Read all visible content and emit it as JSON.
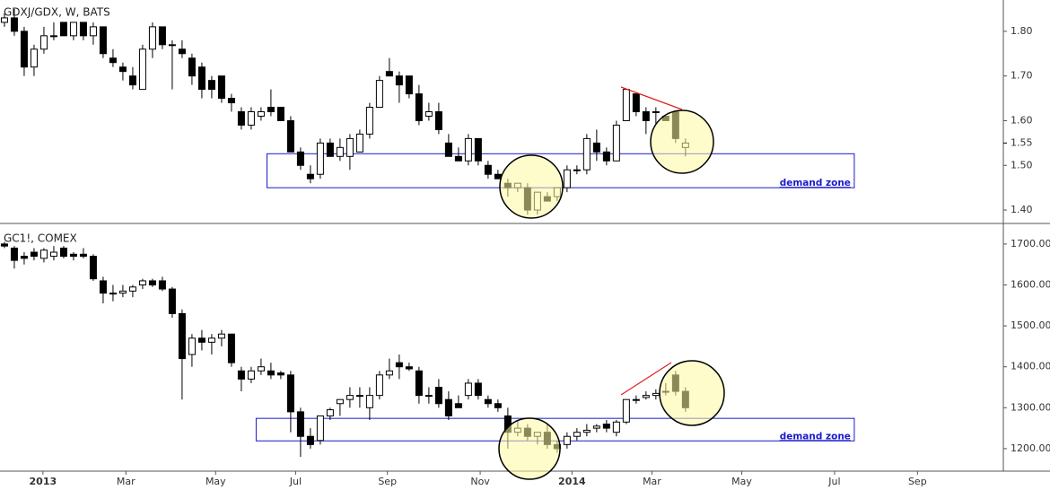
{
  "chart_data": [
    {
      "type": "candlestick",
      "title": "GDXJ/GDX, W, BATS",
      "up_color": "#ffffff",
      "down_color": "#000000",
      "open": [
        1.82,
        1.83,
        1.8,
        1.72,
        1.76,
        1.79,
        1.82,
        1.79,
        1.82,
        1.79,
        1.81,
        1.74,
        1.72,
        1.7,
        1.67,
        1.76,
        1.81,
        1.77,
        1.76,
        1.74,
        1.72,
        1.69,
        1.7,
        1.65,
        1.62,
        1.59,
        1.61,
        1.63,
        1.63,
        1.6,
        1.53,
        1.48,
        1.48,
        1.55,
        1.52,
        1.52,
        1.53,
        1.57,
        1.63,
        1.71,
        1.7,
        1.7,
        1.66,
        1.61,
        1.62,
        1.55,
        1.52,
        1.51,
        1.56,
        1.5,
        1.48,
        1.46,
        1.45,
        1.45,
        1.4,
        1.43,
        1.43,
        1.45,
        1.49,
        1.49,
        1.55,
        1.53,
        1.51,
        1.6,
        1.66,
        1.62,
        1.62,
        1.61,
        1.62,
        1.54
      ],
      "high": [
        1.84,
        1.85,
        1.81,
        1.77,
        1.81,
        1.82,
        1.82,
        1.82,
        1.82,
        1.82,
        1.81,
        1.76,
        1.73,
        1.72,
        1.77,
        1.82,
        1.81,
        1.78,
        1.78,
        1.75,
        1.73,
        1.7,
        1.7,
        1.66,
        1.63,
        1.63,
        1.63,
        1.67,
        1.63,
        1.61,
        1.54,
        1.5,
        1.56,
        1.56,
        1.56,
        1.57,
        1.58,
        1.64,
        1.7,
        1.74,
        1.71,
        1.7,
        1.68,
        1.64,
        1.64,
        1.57,
        1.54,
        1.57,
        1.56,
        1.51,
        1.49,
        1.47,
        1.46,
        1.46,
        1.44,
        1.44,
        1.45,
        1.5,
        1.5,
        1.57,
        1.58,
        1.54,
        1.6,
        1.67,
        1.66,
        1.63,
        1.63,
        1.61,
        1.62,
        1.56
      ],
      "low": [
        1.81,
        1.79,
        1.7,
        1.7,
        1.75,
        1.78,
        1.79,
        1.78,
        1.78,
        1.77,
        1.74,
        1.72,
        1.69,
        1.67,
        1.67,
        1.74,
        1.76,
        1.67,
        1.74,
        1.68,
        1.65,
        1.65,
        1.64,
        1.62,
        1.58,
        1.58,
        1.6,
        1.61,
        1.6,
        1.53,
        1.49,
        1.46,
        1.47,
        1.52,
        1.51,
        1.49,
        1.53,
        1.56,
        1.63,
        1.7,
        1.64,
        1.65,
        1.59,
        1.6,
        1.57,
        1.52,
        1.51,
        1.5,
        1.5,
        1.47,
        1.47,
        1.43,
        1.44,
        1.39,
        1.39,
        1.42,
        1.42,
        1.44,
        1.48,
        1.48,
        1.51,
        1.5,
        1.51,
        1.6,
        1.61,
        1.57,
        1.59,
        1.6,
        1.55,
        1.52
      ],
      "close": [
        1.83,
        1.8,
        1.72,
        1.76,
        1.79,
        1.79,
        1.79,
        1.82,
        1.79,
        1.81,
        1.75,
        1.73,
        1.71,
        1.68,
        1.76,
        1.81,
        1.77,
        1.77,
        1.75,
        1.7,
        1.67,
        1.67,
        1.65,
        1.64,
        1.59,
        1.62,
        1.62,
        1.62,
        1.6,
        1.53,
        1.5,
        1.47,
        1.55,
        1.52,
        1.54,
        1.56,
        1.57,
        1.63,
        1.69,
        1.7,
        1.68,
        1.66,
        1.6,
        1.62,
        1.58,
        1.52,
        1.51,
        1.56,
        1.51,
        1.48,
        1.47,
        1.45,
        1.46,
        1.4,
        1.44,
        1.42,
        1.45,
        1.49,
        1.49,
        1.56,
        1.53,
        1.51,
        1.59,
        1.67,
        1.62,
        1.6,
        1.62,
        1.6,
        1.56,
        1.55
      ],
      "xlim": [
        -0.45,
        101.2
      ],
      "ylim": [
        1.372,
        1.87
      ],
      "yticks": [
        {
          "value": 1.4,
          "label": "1.40"
        },
        {
          "value": 1.5,
          "label": "1.50"
        },
        {
          "value": 1.6,
          "label": "1.60"
        },
        {
          "value": 1.7,
          "label": "1.70"
        },
        {
          "value": 1.8,
          "label": "1.80"
        }
      ],
      "last_price": {
        "value": 1.55,
        "label": "1.55"
      },
      "zones": [
        {
          "label": "demand zone",
          "low": 1.45,
          "high": 1.526,
          "start": 26.6,
          "end": 86.1
        }
      ]
    },
    {
      "type": "candlestick",
      "title": "GC1!, COMEX",
      "up_color": "#ffffff",
      "down_color": "#000000",
      "open": [
        1700,
        1690,
        1670,
        1680,
        1665,
        1670,
        1690,
        1675,
        1675,
        1670,
        1610,
        1580,
        1580,
        1585,
        1600,
        1610,
        1610,
        1590,
        1530,
        1430,
        1470,
        1460,
        1470,
        1480,
        1390,
        1370,
        1390,
        1390,
        1385,
        1380,
        1290,
        1230,
        1220,
        1280,
        1310,
        1320,
        1330,
        1300,
        1330,
        1380,
        1410,
        1400,
        1390,
        1330,
        1350,
        1320,
        1310,
        1330,
        1360,
        1320,
        1310,
        1280,
        1240,
        1250,
        1230,
        1240,
        1210,
        1210,
        1230,
        1240,
        1250,
        1260,
        1240,
        1265,
        1320,
        1325,
        1330,
        1340,
        1380,
        1340
      ],
      "high": [
        1705,
        1695,
        1680,
        1690,
        1690,
        1695,
        1695,
        1680,
        1690,
        1675,
        1620,
        1600,
        1600,
        1600,
        1615,
        1615,
        1620,
        1595,
        1540,
        1480,
        1490,
        1480,
        1490,
        1480,
        1400,
        1400,
        1420,
        1410,
        1390,
        1390,
        1300,
        1250,
        1280,
        1300,
        1320,
        1350,
        1350,
        1350,
        1390,
        1420,
        1430,
        1410,
        1400,
        1350,
        1370,
        1340,
        1330,
        1370,
        1370,
        1330,
        1320,
        1300,
        1270,
        1260,
        1240,
        1260,
        1220,
        1240,
        1250,
        1260,
        1260,
        1270,
        1270,
        1320,
        1330,
        1340,
        1345,
        1360,
        1390,
        1350
      ],
      "low": [
        1690,
        1640,
        1650,
        1660,
        1655,
        1660,
        1665,
        1660,
        1665,
        1610,
        1555,
        1560,
        1570,
        1570,
        1590,
        1595,
        1585,
        1520,
        1320,
        1400,
        1440,
        1430,
        1450,
        1400,
        1340,
        1360,
        1380,
        1370,
        1370,
        1240,
        1180,
        1200,
        1210,
        1270,
        1280,
        1300,
        1300,
        1270,
        1320,
        1370,
        1370,
        1390,
        1310,
        1310,
        1300,
        1270,
        1300,
        1320,
        1320,
        1300,
        1290,
        1200,
        1230,
        1220,
        1210,
        1200,
        1190,
        1200,
        1220,
        1230,
        1240,
        1240,
        1230,
        1260,
        1310,
        1320,
        1320,
        1330,
        1330,
        1290
      ],
      "close": [
        1695,
        1660,
        1665,
        1670,
        1685,
        1680,
        1670,
        1670,
        1670,
        1615,
        1580,
        1580,
        1585,
        1595,
        1610,
        1600,
        1590,
        1530,
        1420,
        1470,
        1460,
        1470,
        1480,
        1410,
        1370,
        1390,
        1400,
        1380,
        1380,
        1290,
        1230,
        1210,
        1280,
        1295,
        1320,
        1330,
        1330,
        1330,
        1380,
        1390,
        1400,
        1395,
        1330,
        1330,
        1310,
        1280,
        1300,
        1360,
        1330,
        1310,
        1300,
        1240,
        1250,
        1230,
        1240,
        1210,
        1200,
        1230,
        1240,
        1245,
        1255,
        1250,
        1265,
        1320,
        1320,
        1330,
        1335,
        1340,
        1340,
        1300
      ],
      "xlim": [
        -0.45,
        101.2
      ],
      "ylim": [
        1145,
        1748
      ],
      "yticks": [
        {
          "value": 1200,
          "label": "1200.00"
        },
        {
          "value": 1300,
          "label": "1300.00"
        },
        {
          "value": 1400,
          "label": "1400.00"
        },
        {
          "value": 1500,
          "label": "1500.00"
        },
        {
          "value": 1600,
          "label": "1600.00"
        },
        {
          "value": 1700,
          "label": "1700.00"
        }
      ],
      "xticks": [
        {
          "value": 3.9,
          "label": "2013"
        },
        {
          "value": 12.3,
          "label": "Mar"
        },
        {
          "value": 21.4,
          "label": "May"
        },
        {
          "value": 29.5,
          "label": "Jul"
        },
        {
          "value": 38.8,
          "label": "Sep"
        },
        {
          "value": 48.2,
          "label": "Nov"
        },
        {
          "value": 57.5,
          "label": "2014"
        },
        {
          "value": 65.6,
          "label": "Mar"
        },
        {
          "value": 74.7,
          "label": "May"
        },
        {
          "value": 84.1,
          "label": "Jul"
        },
        {
          "value": 92.5,
          "label": "Sep"
        }
      ],
      "zones": [
        {
          "label": "demand zone",
          "low": 1219,
          "high": 1274,
          "start": 25.5,
          "end": 86.1
        }
      ]
    }
  ]
}
